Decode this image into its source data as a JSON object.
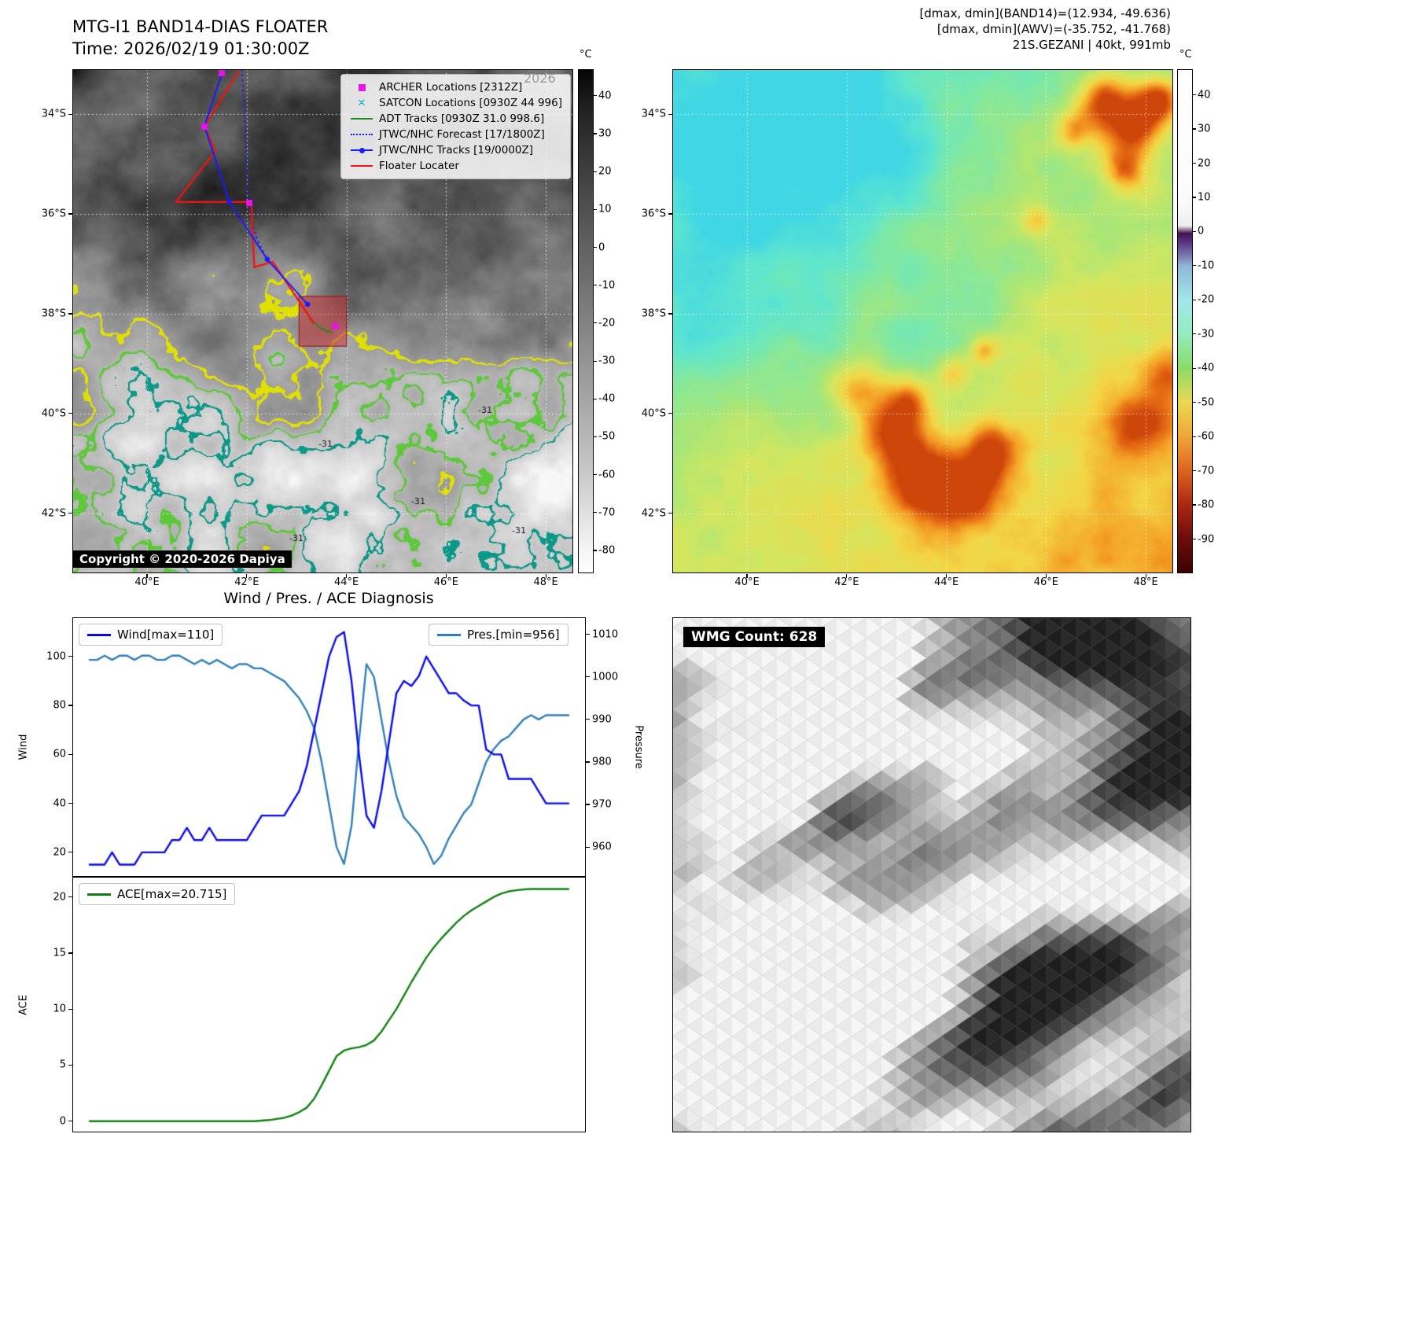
{
  "panel_band14": {
    "title": "MTG-I1 BAND14-DIAS FLOATER",
    "subtitle": "Time: 2026/02/19 01:30:00Z",
    "watermark": "2026",
    "copyright": "Copyright © 2020-2026 Dapiya",
    "colorbar_unit": "°C",
    "colorbar_ticks": [
      40,
      30,
      20,
      10,
      0,
      -10,
      -20,
      -30,
      -40,
      -50,
      -60,
      -70,
      -80
    ],
    "x_tick_labels": [
      "40°E",
      "42°E",
      "44°E",
      "46°E",
      "48°E"
    ],
    "x_tick_lons": [
      40,
      42,
      44,
      46,
      48
    ],
    "y_tick_labels": [
      "34°S",
      "36°S",
      "38°S",
      "40°S",
      "42°S"
    ],
    "y_tick_lats": [
      34,
      36,
      38,
      40,
      42
    ],
    "contour_label": "-31",
    "legend": [
      {
        "label": "ARCHER Locations [2312Z]",
        "marker": "square",
        "color": "#e814e8"
      },
      {
        "label": "SATCON Locations [0930Z 44 996]",
        "marker": "x",
        "color": "#00b8c8"
      },
      {
        "label": "ADT Tracks [0930Z 31.0 998.6]",
        "marker": "line",
        "color": "#1e8c1e"
      },
      {
        "label": "JTWC/NHC Forecast [17/1800Z]",
        "marker": "dotted",
        "color": "#1a1aff"
      },
      {
        "label": "JTWC/NHC Tracks [19/0000Z]",
        "marker": "line-circle",
        "color": "#1a1aff"
      },
      {
        "label": "Floater Locater",
        "marker": "line",
        "color": "#f51212"
      }
    ],
    "tracks": {
      "floater": [
        [
          41.86,
          33.1
        ],
        [
          41.15,
          34.24
        ],
        [
          41.37,
          34.74
        ],
        [
          40.58,
          35.76
        ],
        [
          42.09,
          35.76
        ],
        [
          42.15,
          37.07
        ],
        [
          42.52,
          36.96
        ],
        [
          43.35,
          38.2
        ]
      ],
      "jtwc": [
        [
          41.53,
          33.1
        ],
        [
          41.15,
          34.24
        ],
        [
          41.65,
          35.76
        ],
        [
          42.41,
          36.91
        ],
        [
          43.22,
          37.81
        ]
      ],
      "forecast": [
        [
          41.9,
          33.1
        ],
        [
          41.97,
          34.2
        ],
        [
          42.02,
          35.75
        ],
        [
          42.2,
          36.5
        ],
        [
          42.41,
          36.91
        ]
      ],
      "adt": [
        [
          43.25,
          38.1
        ],
        [
          43.5,
          38.3
        ],
        [
          43.7,
          38.38
        ]
      ],
      "archer": [
        [
          41.5,
          33.18
        ],
        [
          41.15,
          34.25
        ],
        [
          42.05,
          35.78
        ],
        [
          43.78,
          38.25
        ]
      ],
      "floater_box": {
        "lon": [
          43.05,
          44.0
        ],
        "lat": [
          37.65,
          38.65
        ]
      }
    }
  },
  "panel_awv": {
    "header_lines": [
      "[dmax, dmin](BAND14)=(12.934, -49.636)",
      "[dmax, dmin](AWV)=(-35.752, -41.768)",
      "21S.GEZANI | 40kt, 991mb"
    ],
    "colorbar_unit": "°C",
    "colorbar_ticks": [
      40,
      30,
      20,
      10,
      0,
      -10,
      -20,
      -30,
      -40,
      -50,
      -60,
      -70,
      -80,
      -90
    ],
    "x_tick_labels": [
      "40°E",
      "42°E",
      "44°E",
      "46°E",
      "48°E"
    ],
    "x_tick_lons": [
      40,
      42,
      44,
      46,
      48
    ],
    "y_tick_labels": [
      "34°S",
      "36°S",
      "38°S",
      "40°S",
      "42°S"
    ],
    "y_tick_lats": [
      34,
      36,
      38,
      40,
      42
    ]
  },
  "panel_wmg": {
    "label": "WMG Count: 628"
  },
  "chart_data": [
    {
      "type": "line",
      "title": "Wind / Pres. / ACE Diagnosis",
      "series": [
        {
          "name": "Wind[max=110]",
          "axis": "left",
          "color": "#0808f0",
          "values": [
            15,
            15,
            15,
            20,
            15,
            15,
            15,
            20,
            20,
            20,
            20,
            25,
            25,
            30,
            25,
            25,
            30,
            25,
            25,
            25,
            25,
            25,
            30,
            35,
            35,
            35,
            35,
            40,
            45,
            55,
            70,
            85,
            100,
            108,
            110,
            90,
            60,
            35,
            30,
            45,
            65,
            85,
            90,
            88,
            92,
            100,
            95,
            90,
            85,
            85,
            82,
            80,
            80,
            62,
            60,
            60,
            50,
            50,
            50,
            50,
            45,
            40,
            40,
            40,
            40
          ]
        },
        {
          "name": "Pres.[min=956]",
          "axis": "right",
          "color": "#2e7eb8",
          "values": [
            1004,
            1004,
            1005,
            1004,
            1005,
            1005,
            1004,
            1005,
            1005,
            1004,
            1004,
            1005,
            1005,
            1004,
            1003,
            1004,
            1003,
            1004,
            1003,
            1002,
            1003,
            1003,
            1002,
            1002,
            1001,
            1000,
            999,
            997,
            995,
            992,
            988,
            980,
            970,
            960,
            956,
            965,
            985,
            1003,
            1000,
            990,
            980,
            972,
            967,
            965,
            963,
            960,
            956,
            958,
            962,
            965,
            968,
            970,
            975,
            980,
            983,
            985,
            986,
            988,
            990,
            991,
            990,
            991,
            991,
            991,
            991
          ]
        }
      ],
      "left_axis": {
        "label": "Wind",
        "ticks": [
          100,
          80,
          60,
          40,
          20
        ],
        "range": [
          10,
          116
        ]
      },
      "right_axis": {
        "label": "Pressure",
        "ticks": [
          1010,
          1000,
          990,
          980,
          970,
          960
        ],
        "range": [
          953,
          1014
        ]
      }
    },
    {
      "type": "line",
      "series": [
        {
          "name": "ACE[max=20.715]",
          "color": "#0f800f",
          "values": [
            0,
            0,
            0,
            0,
            0,
            0,
            0,
            0,
            0,
            0,
            0,
            0,
            0,
            0,
            0,
            0,
            0,
            0,
            0,
            0,
            0,
            0,
            0,
            0.05,
            0.1,
            0.2,
            0.3,
            0.5,
            0.8,
            1.2,
            2.0,
            3.2,
            4.5,
            5.8,
            6.3,
            6.5,
            6.6,
            6.8,
            7.2,
            8.0,
            9.0,
            10.0,
            11.2,
            12.4,
            13.5,
            14.6,
            15.5,
            16.3,
            17.0,
            17.7,
            18.3,
            18.8,
            19.2,
            19.6,
            20.0,
            20.3,
            20.5,
            20.6,
            20.68,
            20.715,
            20.715,
            20.715,
            20.715,
            20.715,
            20.715
          ]
        }
      ],
      "left_axis": {
        "label": "ACE",
        "ticks": [
          20,
          15,
          10,
          5,
          0
        ],
        "range": [
          -1,
          21.8
        ]
      }
    }
  ]
}
